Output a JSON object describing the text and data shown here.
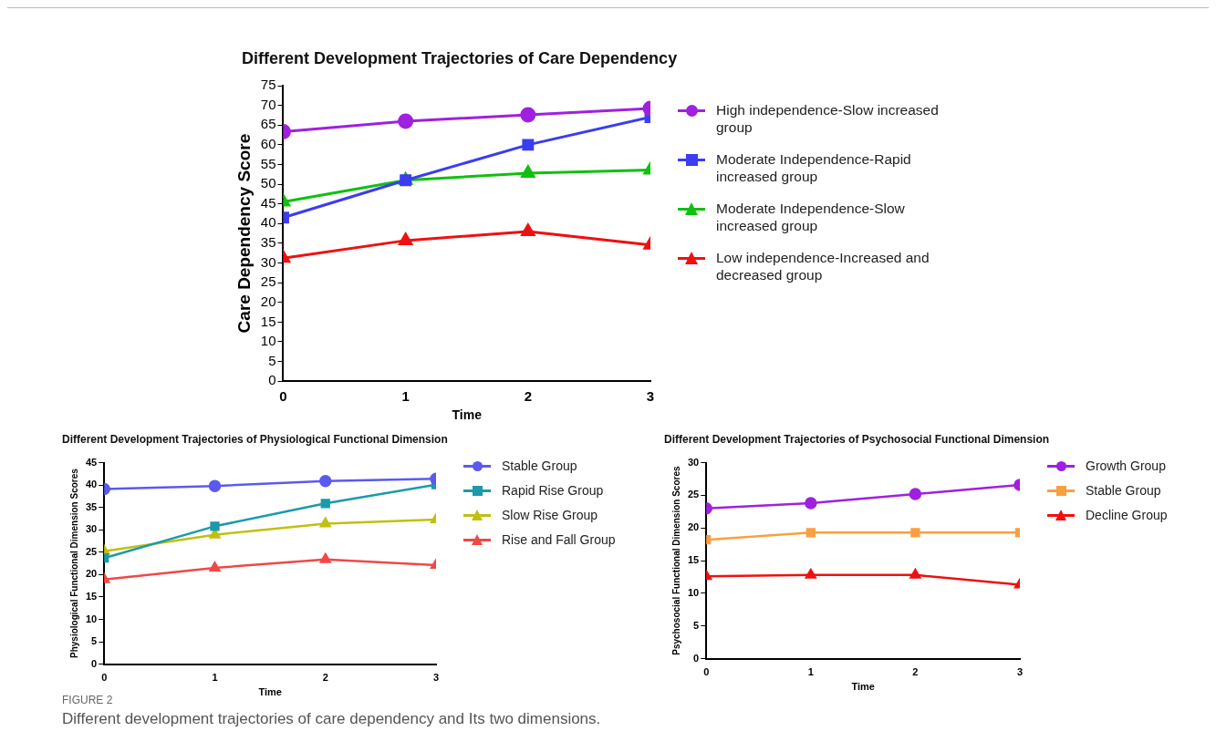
{
  "chart_data": [
    {
      "type": "line",
      "title": "Different Development Trajectories of Care Dependency",
      "xlabel": "Time",
      "ylabel": "Care Dependency Score",
      "x": [
        0,
        1,
        2,
        3
      ],
      "xlim": [
        0,
        3
      ],
      "xticks": [
        0,
        1,
        2,
        3
      ],
      "ylim": [
        0,
        75
      ],
      "yticks": [
        0,
        5,
        10,
        15,
        20,
        25,
        30,
        35,
        40,
        45,
        50,
        55,
        60,
        65,
        70,
        75
      ],
      "legend": "right",
      "series": [
        {
          "name": "High independence-Slow increased group",
          "color": "#a020e0",
          "marker": "circle",
          "values": [
            63.3,
            66,
            67.6,
            69.2
          ]
        },
        {
          "name": "Moderate Independence-Rapid increased group",
          "color": "#3c3cf0",
          "marker": "square",
          "values": [
            41.5,
            51,
            60,
            67
          ]
        },
        {
          "name": "Moderate Independence-Slow increased group",
          "color": "#10c010",
          "marker": "triangle",
          "values": [
            45.5,
            51,
            52.8,
            53.6
          ]
        },
        {
          "name": "Low independence-Increased and decreased group",
          "color": "#f01010",
          "marker": "triangle",
          "values": [
            31.2,
            35.7,
            38,
            34.6
          ]
        }
      ]
    },
    {
      "type": "line",
      "title": "Different Development Trajectories of Physiological Functional Dimension",
      "xlabel": "Time",
      "ylabel": "Physiological Functional Dimension Scores",
      "x": [
        0,
        1,
        2,
        3
      ],
      "xlim": [
        0,
        3
      ],
      "xticks": [
        0,
        1,
        2,
        3
      ],
      "ylim": [
        0,
        45
      ],
      "yticks": [
        0,
        5,
        10,
        15,
        20,
        25,
        30,
        35,
        40,
        45
      ],
      "legend": "right",
      "series": [
        {
          "name": "Stable Group",
          "color": "#5a5af0",
          "marker": "circle",
          "values": [
            39.1,
            39.8,
            40.9,
            41.4
          ]
        },
        {
          "name": "Rapid Rise Group",
          "color": "#1a9aaa",
          "marker": "square",
          "values": [
            23.7,
            30.8,
            35.9,
            40.1
          ]
        },
        {
          "name": "Slow Rise Group",
          "color": "#c0c010",
          "marker": "triangle",
          "values": [
            25.2,
            28.9,
            31.4,
            32.3
          ]
        },
        {
          "name": "Rise and Fall Group",
          "color": "#f04848",
          "marker": "triangle",
          "values": [
            18.9,
            21.5,
            23.4,
            22.1
          ]
        }
      ]
    },
    {
      "type": "line",
      "title": "Different Development Trajectories of Psychosocial Functional Dimension",
      "xlabel": "Time",
      "ylabel": "Psychosocial Functional Dimension Scores",
      "x": [
        0,
        1,
        2,
        3
      ],
      "xlim": [
        0,
        3
      ],
      "xticks": [
        0,
        1,
        2,
        3
      ],
      "ylim": [
        0,
        30
      ],
      "yticks": [
        0,
        5,
        10,
        15,
        20,
        25,
        30
      ],
      "legend": "right",
      "annotations": [
        "FIGURE 2",
        "Different development trajectories of care dependency and Its two dimensions."
      ],
      "series": [
        {
          "name": "Growth Group",
          "color": "#a020e0",
          "marker": "circle",
          "values": [
            23,
            23.8,
            25.2,
            26.6
          ]
        },
        {
          "name": "Stable Group",
          "color": "#f8a040",
          "marker": "square",
          "values": [
            18.2,
            19.3,
            19.3,
            19.3
          ]
        },
        {
          "name": "Decline Group",
          "color": "#f01010",
          "marker": "triangle",
          "values": [
            12.6,
            12.8,
            12.8,
            11.3
          ]
        }
      ]
    }
  ]
}
